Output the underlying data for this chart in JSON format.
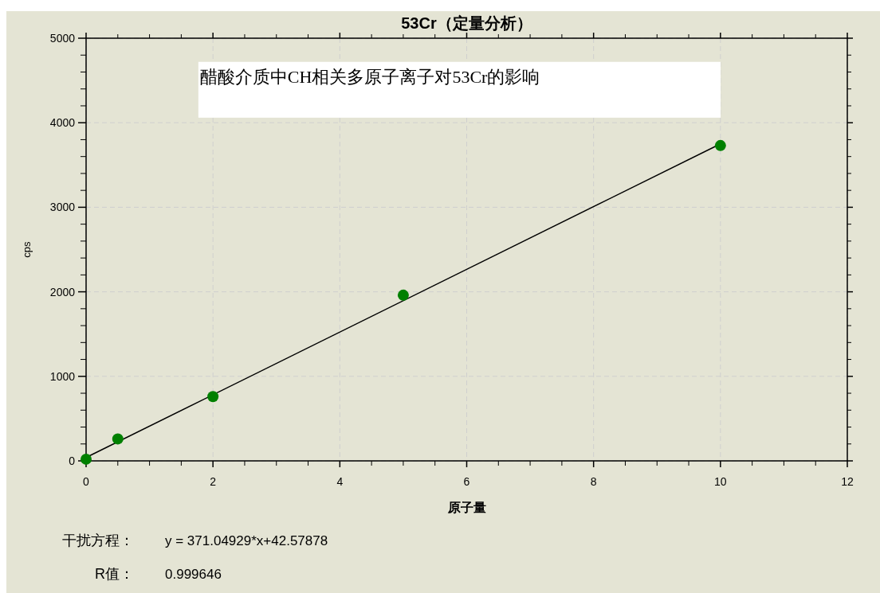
{
  "chart_data": {
    "type": "scatter",
    "title": "53Cr（定量分析）",
    "xlabel": "原子量",
    "ylabel": "cps",
    "xlim": [
      0,
      12
    ],
    "xticks": [
      0,
      2,
      4,
      6,
      8,
      10,
      12
    ],
    "ylim": [
      0,
      5000
    ],
    "yticks": [
      0,
      1000,
      2000,
      3000,
      4000,
      5000
    ],
    "grid": true,
    "marker": "circle",
    "series": [
      {
        "type": "scatter",
        "color": "#008000",
        "x": [
          0,
          0.5,
          2,
          5,
          10
        ],
        "values": [
          20,
          260,
          760,
          1960,
          3730
        ]
      },
      {
        "type": "line",
        "color": "#000000",
        "marker": "none",
        "x": [
          0,
          10
        ],
        "values": [
          40,
          3750
        ]
      }
    ],
    "annotations": [
      "醋酸介质中CH相关多原子离子对53Cr的影响",
      "干扰方程：",
      "y = 371.04929*x+42.57878",
      "R值：",
      "0.999646"
    ]
  }
}
